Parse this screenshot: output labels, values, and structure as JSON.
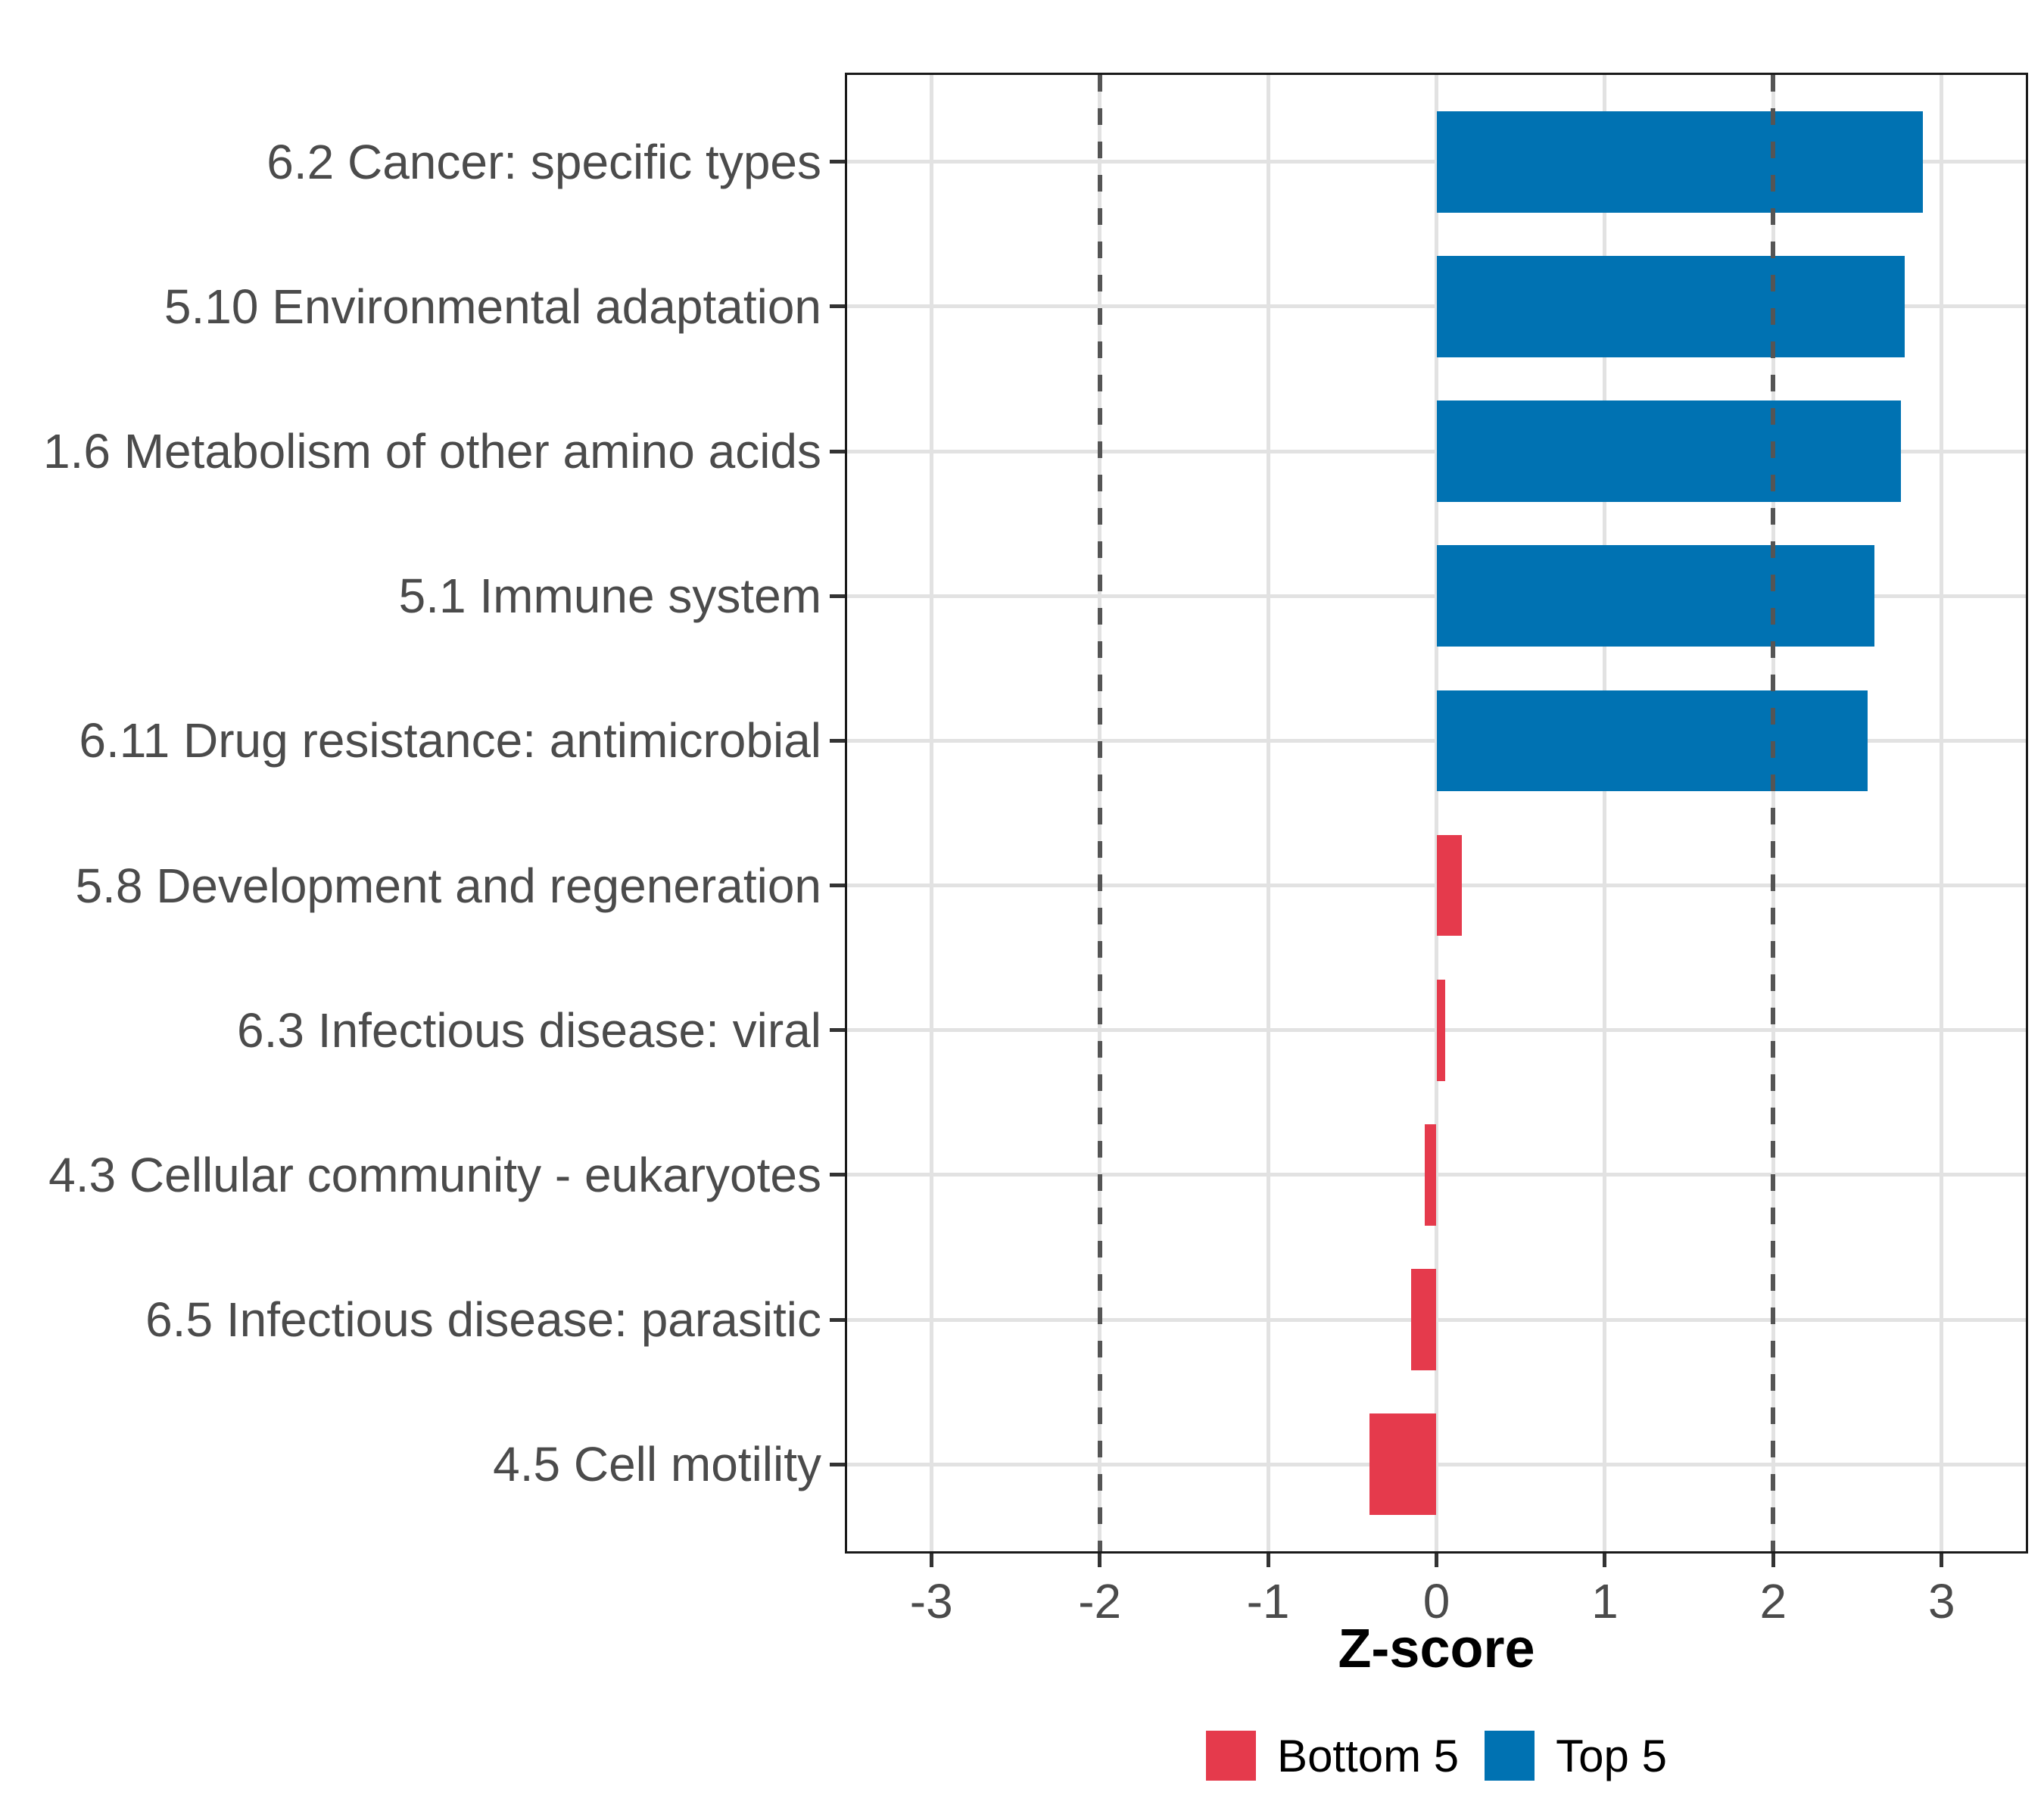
{
  "chart_data": {
    "type": "bar",
    "orientation": "horizontal",
    "title": "",
    "xlabel": "Z-score",
    "ylabel": "",
    "xlim": [
      -3.5,
      3.5
    ],
    "x_ticks": [
      -3,
      -2,
      -1,
      0,
      1,
      2,
      3
    ],
    "reference_lines": [
      -2,
      2
    ],
    "grid": true,
    "legend_position": "bottom",
    "bars": [
      {
        "category": "6.2 Cancer: specific types",
        "value": 2.89,
        "group": "Top 5"
      },
      {
        "category": "5.10 Environmental adaptation",
        "value": 2.78,
        "group": "Top 5"
      },
      {
        "category": "1.6 Metabolism of other amino acids",
        "value": 2.76,
        "group": "Top 5"
      },
      {
        "category": "5.1 Immune system",
        "value": 2.6,
        "group": "Top 5"
      },
      {
        "category": "6.11 Drug resistance: antimicrobial",
        "value": 2.56,
        "group": "Top 5"
      },
      {
        "category": "5.8 Development and regeneration",
        "value": 0.15,
        "group": "Bottom 5"
      },
      {
        "category": "6.3 Infectious disease: viral",
        "value": 0.05,
        "group": "Bottom 5"
      },
      {
        "category": "4.3 Cellular community - eukaryotes",
        "value": -0.07,
        "group": "Bottom 5"
      },
      {
        "category": "6.5 Infectious disease: parasitic",
        "value": -0.15,
        "group": "Bottom 5"
      },
      {
        "category": "4.5 Cell motility",
        "value": -0.4,
        "group": "Bottom 5"
      }
    ],
    "legend": [
      {
        "label": "Bottom 5",
        "color": "#E53A4C"
      },
      {
        "label": "Top 5",
        "color": "#0072B2"
      }
    ],
    "group_colors": {
      "Top 5": "#0072B2",
      "Bottom 5": "#E53A4C"
    },
    "colors": {
      "grid": "#E2E2E2",
      "panel_border": "#1A1A1A",
      "reference_line": "#555555",
      "axis_text": "#4B4B4B",
      "title_text": "#000000",
      "background": "#FFFFFF",
      "tick": "#333333"
    }
  }
}
